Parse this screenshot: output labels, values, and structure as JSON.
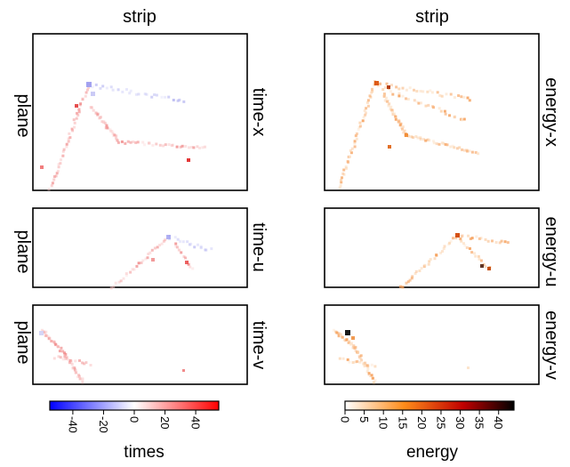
{
  "titles": {
    "left": "strip",
    "right": "strip"
  },
  "row_labels": {
    "y_label": "plane"
  },
  "panels": [
    {
      "id": "time-x",
      "label": "time-x"
    },
    {
      "id": "time-u",
      "label": "time-u"
    },
    {
      "id": "time-v",
      "label": "time-v"
    },
    {
      "id": "energy-x",
      "label": "energy-x"
    },
    {
      "id": "energy-u",
      "label": "energy-u"
    },
    {
      "id": "energy-v",
      "label": "energy-v"
    }
  ],
  "colorbars": {
    "times": {
      "label": "times",
      "colormap": "bwr",
      "range": [
        -55,
        55
      ],
      "ticks": [
        "-40",
        "-20",
        "0",
        "20",
        "40"
      ],
      "tick_values": [
        -40,
        -20,
        0,
        20,
        40
      ],
      "colors": [
        "#0000ff",
        "#ffffff",
        "#ff0000"
      ]
    },
    "energy": {
      "label": "energy",
      "colormap": "gist_heat_r",
      "range": [
        0,
        44
      ],
      "ticks": [
        "0",
        "5",
        "10",
        "15",
        "20",
        "25",
        "30",
        "35",
        "40"
      ],
      "tick_values": [
        0,
        5,
        10,
        15,
        20,
        25,
        30,
        35,
        40
      ],
      "colors": [
        "#ffffff",
        "#ff8c1a",
        "#c00000",
        "#000000"
      ]
    }
  },
  "chart_data": [
    {
      "type": "heatmap",
      "title": "strip",
      "panels": [
        "time-x",
        "time-u",
        "time-v"
      ],
      "ylabel": "plane",
      "colorbar": "times",
      "vrange": [
        -55,
        55
      ]
    },
    {
      "type": "heatmap",
      "title": "strip",
      "panels": [
        "energy-x",
        "energy-u",
        "energy-v"
      ],
      "ylabel": "plane",
      "colorbar": "energy",
      "vrange": [
        0,
        44
      ]
    }
  ]
}
